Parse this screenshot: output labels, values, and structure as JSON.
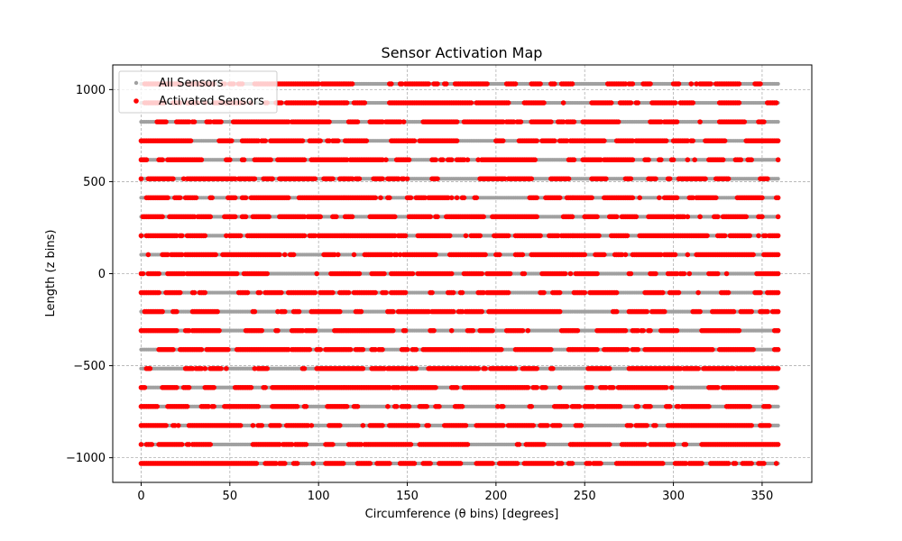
{
  "chart_data": {
    "type": "scatter",
    "title": "Sensor Activation Map",
    "xlabel": "Circumference (θ bins) [degrees]",
    "ylabel": "Length (z bins)",
    "xlim": [
      -16,
      378
    ],
    "ylim": [
      -1134,
      1134
    ],
    "xticks": [
      0,
      50,
      100,
      150,
      200,
      250,
      300,
      350
    ],
    "yticks": [
      -1000,
      -500,
      0,
      500,
      1000
    ],
    "xtick_labels": [
      "0",
      "50",
      "100",
      "150",
      "200",
      "250",
      "300",
      "350"
    ],
    "ytick_labels": [
      "−1000",
      "−500",
      "0",
      "500",
      "1000"
    ],
    "grid": true,
    "legend_position": "top-left",
    "grid_spec": {
      "theta": {
        "start": 0,
        "stop": 359,
        "step": 1
      },
      "z": {
        "start": -1031,
        "stop": 1031,
        "count": 21
      }
    },
    "activation_rate": 0.62,
    "series": [
      {
        "name": "All Sensors",
        "color": "#a0a0a0"
      },
      {
        "name": "Activated Sensors",
        "color": "#ff0000"
      }
    ]
  }
}
